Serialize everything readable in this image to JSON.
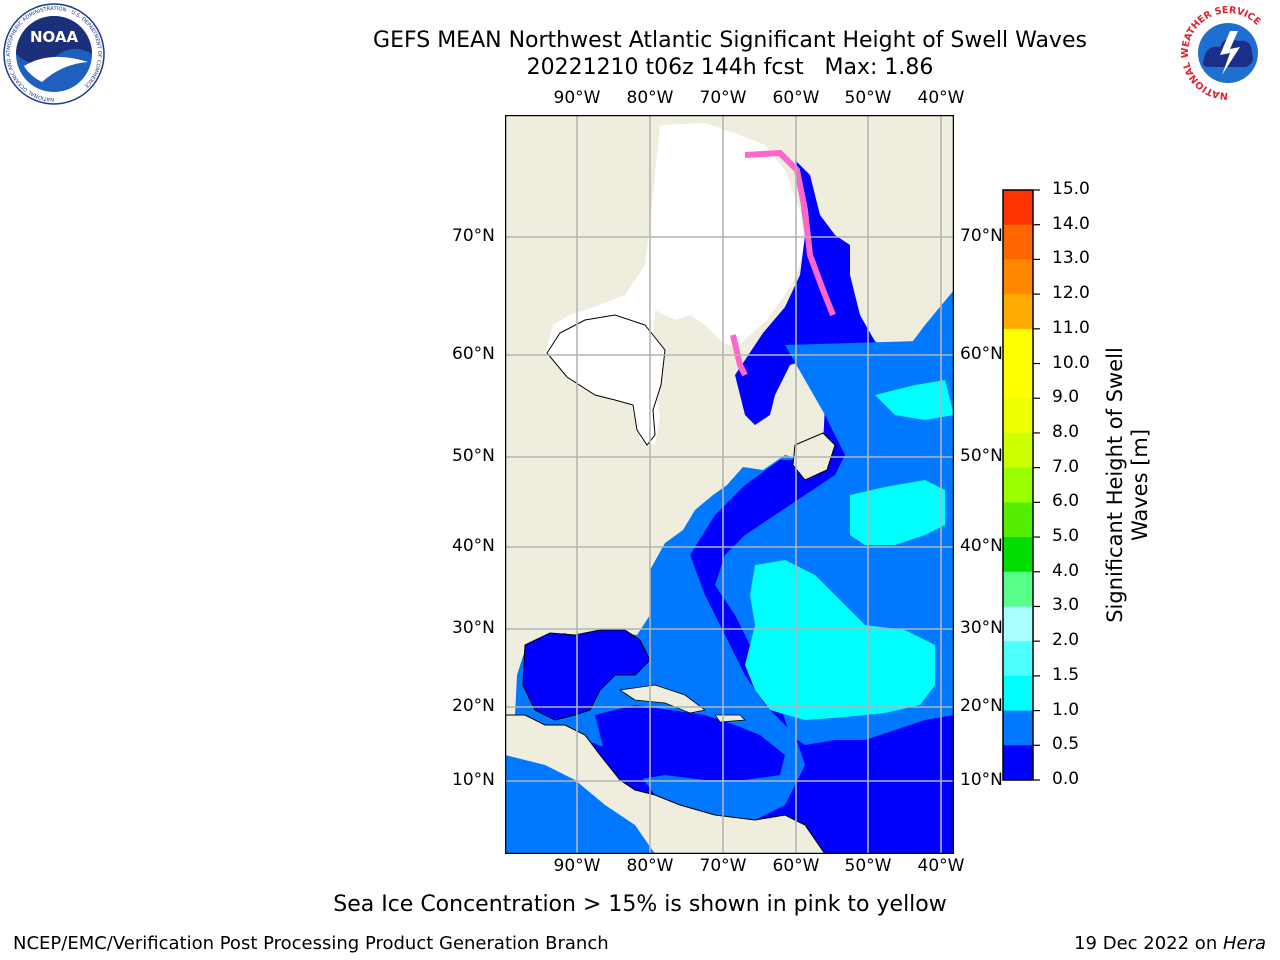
{
  "header": {
    "title_line1": "GEFS MEAN Northwest Atlantic Significant Height of Swell Waves",
    "title_line2": "20221210 t06z 144h fcst   Max: 1.86"
  },
  "logos": {
    "left_text": "NOAA",
    "left_ring_text": "NATIONAL OCEANIC AND ATMOSPHERIC ADMINISTRATION · U.S. DEPARTMENT OF COMMERCE",
    "right_ring_text": "NATIONAL WEATHER SERVICE"
  },
  "map": {
    "lon_labels": [
      "90°W",
      "80°W",
      "70°W",
      "60°W",
      "50°W",
      "40°W"
    ],
    "lat_labels": [
      "70°N",
      "60°N",
      "50°N",
      "40°N",
      "30°N",
      "20°N",
      "10°N"
    ],
    "colors": {
      "land": "#efedde",
      "ice_free": "#ffffff",
      "level_0_0_5": "#0000ff",
      "level_0_5_1_0": "#0078ff",
      "level_1_0_1_5": "#00ffff",
      "level_1_5_2_0": "#4dffff",
      "sea_ice": "#ff66cc",
      "grid": "#b4b4b4"
    }
  },
  "colorbar": {
    "label_line1": "Significant Height of Swell",
    "label_line2": "Waves [m]",
    "ticks": [
      "15.0",
      "14.0",
      "13.0",
      "12.0",
      "11.0",
      "10.0",
      "9.0",
      "8.0",
      "7.0",
      "6.0",
      "5.0",
      "4.0",
      "3.0",
      "2.0",
      "1.5",
      "1.0",
      "0.5",
      "0.0"
    ],
    "colors": [
      "#ff0000",
      "#ff3300",
      "#ff6600",
      "#ff8800",
      "#ffaa00",
      "#ffff00",
      "#ffff00",
      "#eeff00",
      "#ccff00",
      "#99ff00",
      "#55ee00",
      "#00dd00",
      "#55ff88",
      "#aaffff",
      "#4dffff",
      "#00ffff",
      "#0078ff",
      "#0000ff"
    ]
  },
  "caption": "Sea Ice Concentration > 15% is shown in pink to yellow",
  "footer": {
    "left": "NCEP/EMC/Verification Post Processing Product Generation Branch",
    "right_date": "19 Dec 2022 on ",
    "right_host": "Hera"
  }
}
